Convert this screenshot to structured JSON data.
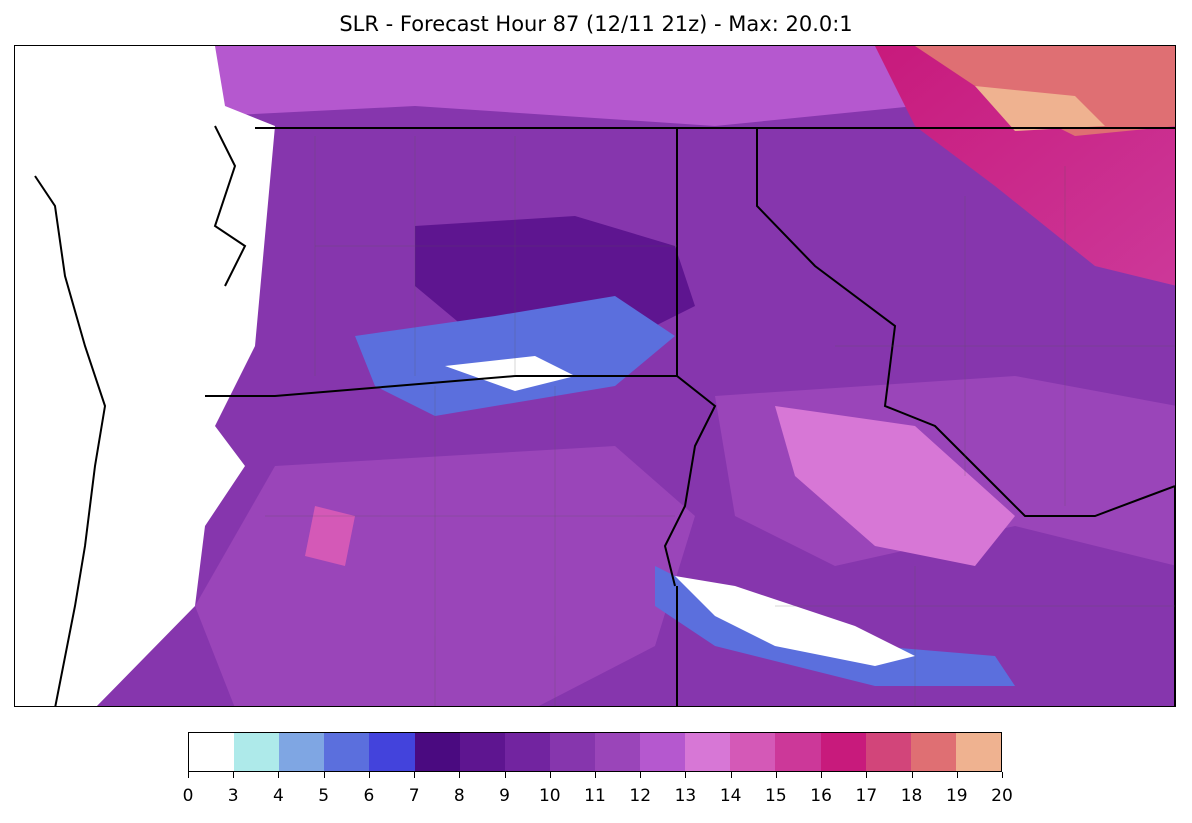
{
  "title": "SLR - Forecast Hour 87 (12/11 21z) - Max: 20.0:1",
  "colorbar": {
    "ticks": [
      "0",
      "3",
      "4",
      "5",
      "6",
      "7",
      "8",
      "9",
      "10",
      "11",
      "12",
      "13",
      "14",
      "15",
      "16",
      "17",
      "18",
      "19",
      "20"
    ],
    "colors": [
      "#ffffff",
      "#aeeaea",
      "#7fa6e3",
      "#5b6fdd",
      "#4343dc",
      "#4a0a80",
      "#5e1590",
      "#7224a0",
      "#8636ad",
      "#9a45b9",
      "#b558cf",
      "#d777d6",
      "#d459b7",
      "#cc3899",
      "#c81a7c",
      "#d2457a",
      "#df6f73",
      "#efb290"
    ]
  },
  "map": {
    "description_colors": {
      "ocean": "#ffffff",
      "border": "#000000",
      "county_line": "#555555"
    }
  }
}
